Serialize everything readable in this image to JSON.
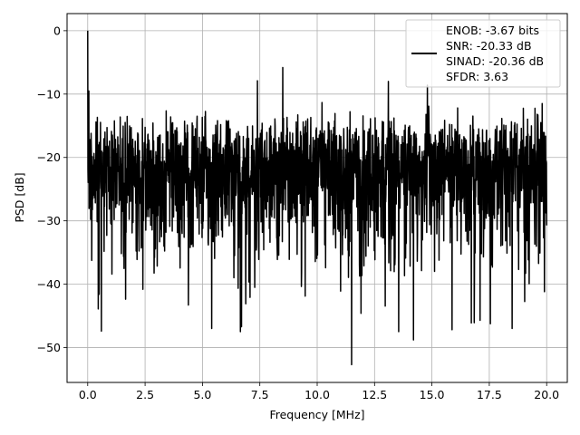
{
  "chart_data": {
    "type": "line",
    "title": "",
    "xlabel": "Frequency [MHz]",
    "ylabel": "PSD [dB]",
    "xlim": [
      -0.9,
      20.9
    ],
    "ylim": [
      -55.5,
      2.7
    ],
    "x_ticks": [
      0.0,
      2.5,
      5.0,
      7.5,
      10.0,
      12.5,
      15.0,
      17.5,
      20.0
    ],
    "x_tick_labels": [
      "0.0",
      "2.5",
      "5.0",
      "7.5",
      "10.0",
      "12.5",
      "15.0",
      "17.5",
      "20.0"
    ],
    "y_ticks": [
      0,
      -10,
      -20,
      -30,
      -40,
      -50
    ],
    "y_tick_labels": [
      "0",
      "−10",
      "−20",
      "−30",
      "−40",
      "−50"
    ],
    "grid": true,
    "legend_position": "top-right",
    "legend_lines": [
      "ENOB: -3.67 bits",
      "SNR: -20.33 dB",
      "SINAD: -20.36 dB",
      "SFDR: 3.63"
    ],
    "series": [
      {
        "color": "#000000",
        "x_range": [
          0.0,
          20.0
        ],
        "num_points": 2048,
        "band_mean_db": -20.5,
        "band_spread_db": 6.5,
        "peaks": [
          {
            "x": 0.0,
            "y": 0.0
          },
          {
            "x": 0.05,
            "y": -9.5
          },
          {
            "x": 0.15,
            "y": -16.2
          }
        ],
        "notable_local_maxima": [
          {
            "x": 8.5,
            "y": -5.8
          },
          {
            "x": 7.4,
            "y": -7.9
          },
          {
            "x": 13.1,
            "y": -8.0
          },
          {
            "x": 14.8,
            "y": -8.6
          },
          {
            "x": 19.8,
            "y": -11.5
          }
        ],
        "notable_local_minima": [
          {
            "x": 11.5,
            "y": -52.7
          },
          {
            "x": 14.2,
            "y": -48.8
          },
          {
            "x": 5.4,
            "y": -47.0
          },
          {
            "x": 0.6,
            "y": -47.4
          },
          {
            "x": 18.5,
            "y": -47.0
          },
          {
            "x": 6.7,
            "y": -46.7
          },
          {
            "x": 17.1,
            "y": -45.7
          },
          {
            "x": 0.5,
            "y": -41.6
          },
          {
            "x": 2.4,
            "y": -40.8
          }
        ]
      }
    ]
  }
}
